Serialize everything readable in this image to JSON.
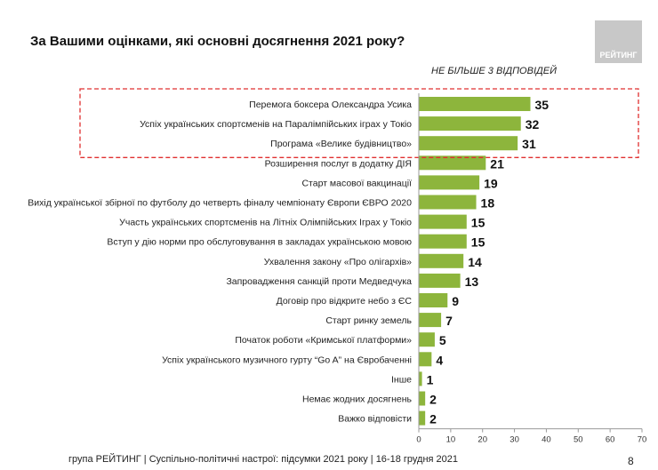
{
  "title": "За Вашими оцінками, які основні досягнення 2021 року?",
  "logo": "РЕЙТИНГ",
  "note": "НЕ БІЛЬШЕ 3 ВІДПОВІДЕЙ",
  "footer": "група РЕЙТИНГ | Суспільно-політичні настрої: підсумки 2021 року | 16-18 грудня 2021",
  "page_number": "8",
  "chart_data": {
    "type": "bar",
    "orientation": "horizontal",
    "categories": [
      "Перемога боксера Олександра Усика",
      "Успіх українських спортсменів на Паралімпійських іграх у Токіо",
      "Програма «Велике будівництво»",
      "Розширення послуг в додатку ДІЯ",
      "Старт масової вакцинації",
      "Вихід української збірної по футболу до четверть фіналу чемпіонату Європи ЄВРО 2020",
      "Участь українських спортсменів на Літніх Олімпійських Іграх у Токіо",
      "Вступ у дію норми про обслуговування в закладах українською мовою",
      "Ухвалення закону «Про олігархів»",
      "Запровадження санкцій проти Медведчука",
      "Договір про відкрите небо з ЄС",
      "Старт ринку земель",
      "Початок роботи «Кримської платформи»",
      "Успіх українського музичного гурту “Go A” на Євробаченні",
      "Інше",
      "Немає жодних досягнень",
      "Важко відповісти"
    ],
    "values": [
      35,
      32,
      31,
      21,
      19,
      18,
      15,
      15,
      14,
      13,
      9,
      7,
      5,
      4,
      1,
      2,
      2
    ],
    "xlim": [
      0,
      70
    ],
    "xticks": [
      0,
      10,
      20,
      30,
      40,
      50,
      60,
      70
    ],
    "highlighted": [
      0,
      1,
      2
    ],
    "bar_color": "#8db53c",
    "highlight_color": "#e03030"
  }
}
